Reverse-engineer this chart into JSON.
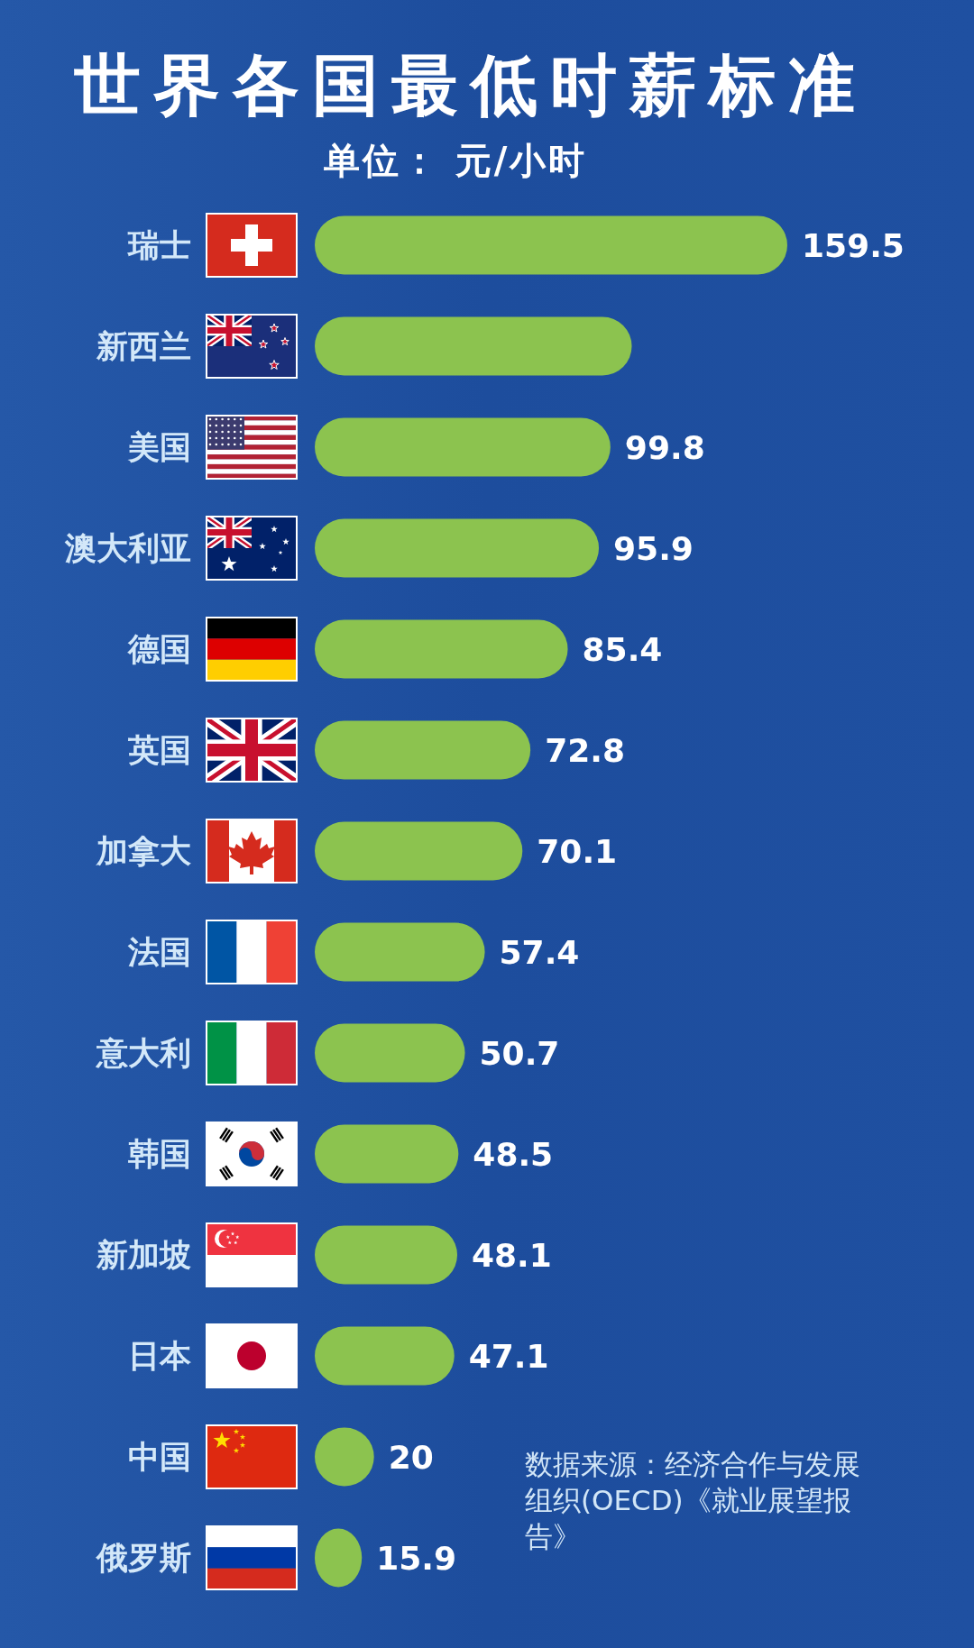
{
  "chart_data": {
    "type": "bar",
    "orientation": "horizontal",
    "title": "世界各国最低时薪标准",
    "subtitle": "单位： 元/小时",
    "categories": [
      "瑞士",
      "新西兰",
      "美国",
      "澳大利亚",
      "德国",
      "英国",
      "加拿大",
      "法国",
      "意大利",
      "韩国",
      "新加坡",
      "日本",
      "中国",
      "俄罗斯"
    ],
    "values": [
      159.5,
      107,
      99.8,
      95.9,
      85.4,
      72.8,
      70.1,
      57.4,
      50.7,
      48.5,
      48.1,
      47.1,
      20,
      15.9
    ],
    "value_labels": [
      "159.5",
      null,
      "99.8",
      "95.9",
      "85.4",
      "72.8",
      "70.1",
      "57.4",
      "50.7",
      "48.5",
      "48.1",
      "47.1",
      "20",
      "15.9"
    ],
    "color": "#8cc34f",
    "annotations": [
      "数据来源：经济合作与发展组织(OECD)《就业展望报告》"
    ]
  }
}
